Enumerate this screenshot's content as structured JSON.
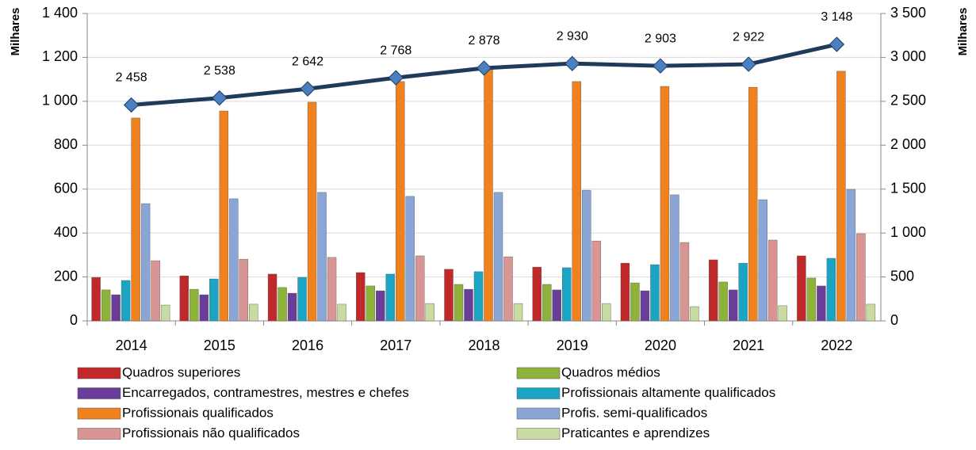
{
  "chart_data": {
    "type": "bar",
    "categories": [
      "2014",
      "2015",
      "2016",
      "2017",
      "2018",
      "2019",
      "2020",
      "2021",
      "2022"
    ],
    "y_label": "Milhares",
    "y2_label": "Milhares",
    "ylim": [
      0,
      1400
    ],
    "yticks": [
      0,
      200,
      400,
      600,
      800,
      {
        "value": 1000,
        "label": "1 000"
      },
      {
        "value": 1200,
        "label": "1 200"
      },
      {
        "value": 1400,
        "label": "1 400"
      }
    ],
    "y2lim": [
      0,
      3500
    ],
    "y2ticks": [
      0,
      500,
      {
        "value": 1000,
        "label": "1 000"
      },
      {
        "value": 1500,
        "label": "1 500"
      },
      {
        "value": 2000,
        "label": "2 000"
      },
      {
        "value": 2500,
        "label": "2 500"
      },
      {
        "value": 3000,
        "label": "3 000"
      },
      {
        "value": 3500,
        "label": "3 500"
      }
    ],
    "series": [
      {
        "name": "Quadros superiores",
        "color": "#c0282a",
        "values": [
          198,
          205,
          213,
          220,
          235,
          245,
          263,
          278,
          296
        ]
      },
      {
        "name": "Quadros médios",
        "color": "#8db33a",
        "values": [
          141,
          144,
          152,
          159,
          166,
          166,
          173,
          177,
          195
        ]
      },
      {
        "name": "Encarregados, contramestres, mestres e chefes",
        "color": "#6a3d9a",
        "values": [
          119,
          119,
          126,
          137,
          144,
          141,
          137,
          141,
          159
        ]
      },
      {
        "name": "Profissionais altamente qualificados",
        "color": "#1ba5c4",
        "values": [
          184,
          191,
          198,
          213,
          224,
          242,
          256,
          263,
          285
        ]
      },
      {
        "name": "Profissionais qualificados",
        "color": "#f0821e",
        "values": [
          924,
          956,
          996,
          1090,
          1155,
          1090,
          1068,
          1064,
          1137
        ]
      },
      {
        "name": "Profis. semi-qualificados",
        "color": "#8aa6d6",
        "values": [
          534,
          556,
          585,
          567,
          585,
          595,
          574,
          552,
          599
        ]
      },
      {
        "name": "Profissionais não qualificados",
        "color": "#d99593",
        "values": [
          274,
          281,
          289,
          296,
          292,
          364,
          357,
          368,
          397
        ]
      },
      {
        "name": "Praticantes e aprendizes",
        "color": "#c8dba0",
        "values": [
          72,
          76,
          76,
          79,
          79,
          79,
          65,
          69,
          76
        ]
      },
      {
        "type": "line",
        "axis": "y2",
        "color": "#1f3b5c",
        "marker_color": "#4a7fc1",
        "values": [
          2458,
          2538,
          2642,
          2768,
          2878,
          2930,
          2903,
          2922,
          3148
        ],
        "value_labels": [
          "2 458",
          "2 538",
          "2 642",
          "2 768",
          "2 878",
          "2 930",
          "2 903",
          "2 922",
          "3 148"
        ]
      }
    ]
  }
}
